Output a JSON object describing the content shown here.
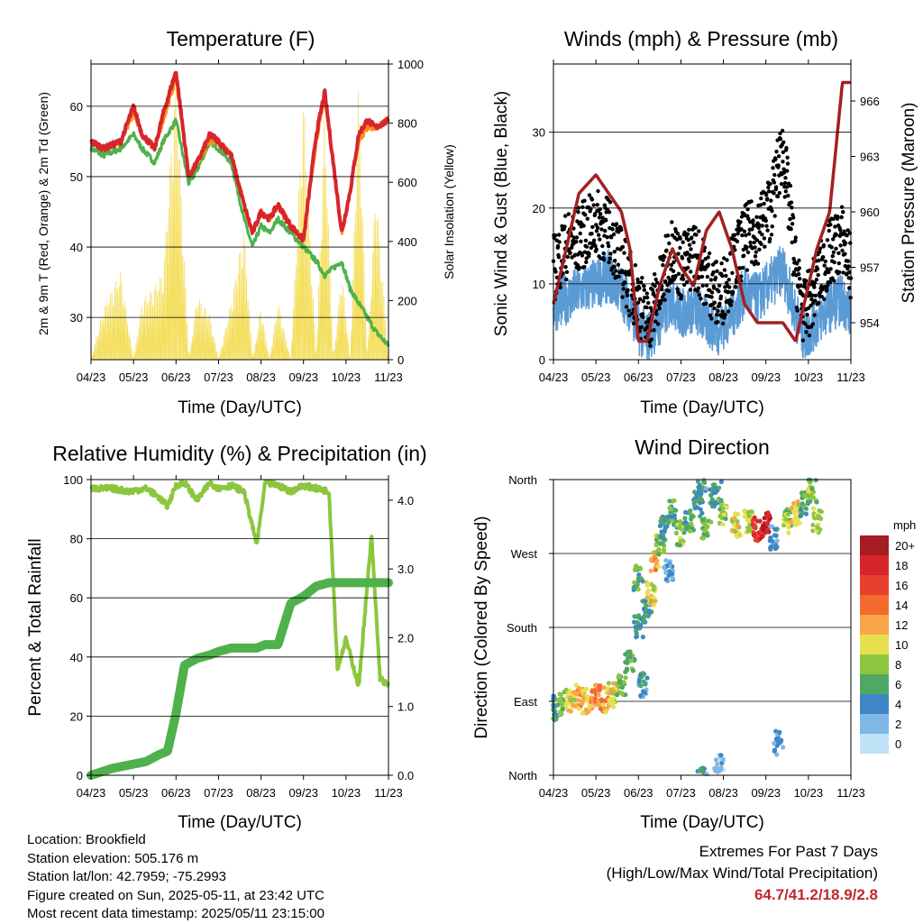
{
  "panels": {
    "temperature": {
      "title": "Temperature (F)",
      "xlabel": "Time (Day/UTC)",
      "ylabel_left": "2m & 9m T (Red, Orange) & 2m Td (Green)",
      "ylabel_right": "Solar Insolation (Yellow)"
    },
    "winds": {
      "title": "Winds (mph) & Pressure (mb)",
      "xlabel": "Time (Day/UTC)",
      "ylabel_left": "Sonic Wind & Gust (Blue, Black)",
      "ylabel_right": "Station Pressure (Maroon)"
    },
    "humidity": {
      "title": "Relative Humidity (%) & Precipitation (in)",
      "xlabel": "Time (Day/UTC)",
      "ylabel_left": "Percent & Total Rainfall"
    },
    "direction": {
      "title": "Wind Direction",
      "xlabel": "Time (Day/UTC)",
      "ylabel_left": "Direction (Colored By Speed)",
      "legend_title": "mph"
    }
  },
  "info": {
    "location": "Location: Brookfield",
    "elevation": "Station elevation: 505.176 m",
    "latlon": "Station lat/lon: 42.7959; -75.2993",
    "created": "Figure created on Sun, 2025-05-11, at 23:42 UTC",
    "recent": "Most recent data timestamp: 2025/05/11 23:15:00"
  },
  "extremes": {
    "title": "Extremes For Past 7 Days",
    "subtitle": "(High/Low/Max Wind/Total Precipitation)",
    "values": "64.7/41.2/18.9/2.8",
    "value_color": "#c0282d"
  },
  "chart_data": [
    {
      "type": "line",
      "title": "Temperature (F)",
      "xlabel": "Time (Day/UTC)",
      "ylabel": "2m & 9m T (Red, Orange) & 2m Td (Green)",
      "y2label": "Solar Insolation (Yellow)",
      "x_ticks": [
        "04/23",
        "05/23",
        "06/23",
        "07/23",
        "08/23",
        "09/23",
        "10/23",
        "11/23"
      ],
      "x": [
        0,
        0.3,
        0.7,
        1.0,
        1.2,
        1.5,
        1.7,
        2.0,
        2.3,
        2.5,
        2.8,
        3.0,
        3.3,
        3.6,
        3.8,
        4.0,
        4.2,
        4.4,
        4.7,
        5.0,
        5.3,
        5.5,
        5.7,
        5.9,
        6.1,
        6.3,
        6.5,
        6.7,
        7.0
      ],
      "xlim": [
        0,
        7
      ],
      "ylim": [
        24,
        66
      ],
      "yticks": [
        30,
        40,
        50,
        60
      ],
      "y2lim": [
        0,
        1000
      ],
      "y2ticks": [
        0,
        200,
        400,
        600,
        800,
        1000
      ],
      "grid": true,
      "series": [
        {
          "name": "2m T",
          "color": "#d7262b",
          "axis": "left",
          "values": [
            55,
            54,
            55,
            60,
            56,
            54,
            59,
            65,
            50,
            52,
            56,
            55,
            53,
            46,
            42,
            45,
            44,
            46,
            43,
            41,
            56,
            62,
            52,
            42,
            48,
            56,
            58,
            57,
            58
          ]
        },
        {
          "name": "9m T",
          "color": "#ff8c1a",
          "axis": "left",
          "values": [
            55,
            54,
            55,
            59,
            56,
            54,
            58,
            64,
            50,
            52,
            55,
            55,
            53,
            46,
            42,
            45,
            44,
            46,
            43,
            41,
            55,
            61,
            52,
            42,
            48,
            55,
            57,
            57,
            58
          ]
        },
        {
          "name": "2m Td",
          "color": "#4fb14b",
          "axis": "left",
          "values": [
            54,
            53,
            54,
            56,
            54,
            52,
            55,
            58,
            49,
            51,
            55,
            54,
            52,
            44,
            40,
            43,
            42,
            44,
            42,
            40,
            38,
            36,
            37,
            38,
            34,
            32,
            30,
            28,
            26
          ]
        },
        {
          "name": "Solar Insolation",
          "color": "#f4de5c",
          "axis": "right",
          "values": [
            0,
            180,
            300,
            0,
            200,
            250,
            300,
            980,
            0,
            220,
            150,
            0,
            200,
            450,
            0,
            180,
            0,
            200,
            0,
            900,
            0,
            850,
            0,
            300,
            0,
            950,
            0,
            600,
            0
          ]
        }
      ]
    },
    {
      "type": "scatter",
      "title": "Winds (mph) & Pressure (mb)",
      "xlabel": "Time (Day/UTC)",
      "ylabel": "Sonic Wind & Gust (Blue, Black)",
      "y2label": "Station Pressure (Maroon)",
      "x_ticks": [
        "04/23",
        "05/23",
        "06/23",
        "07/23",
        "08/23",
        "09/23",
        "10/23",
        "11/23"
      ],
      "x": [
        0,
        0.3,
        0.6,
        1.0,
        1.3,
        1.6,
        1.8,
        2.0,
        2.2,
        2.5,
        2.8,
        3.0,
        3.3,
        3.6,
        3.9,
        4.2,
        4.5,
        4.8,
        5.1,
        5.4,
        5.7,
        5.9,
        6.2,
        6.5,
        6.8,
        7.0
      ],
      "xlim": [
        0,
        7
      ],
      "ylim": [
        0,
        39
      ],
      "yticks": [
        0,
        10,
        20,
        30
      ],
      "y2lim": [
        952,
        968
      ],
      "y2ticks": [
        954,
        957,
        960,
        963,
        966
      ],
      "grid": true,
      "series": [
        {
          "name": "Sonic Wind",
          "color": "#5b9bd5",
          "axis": "left",
          "values": [
            7,
            8,
            9,
            10,
            11,
            9,
            7,
            4,
            3,
            5,
            8,
            6,
            7,
            5,
            4,
            6,
            9,
            8,
            10,
            12,
            6,
            3,
            5,
            7,
            8,
            6
          ]
        },
        {
          "name": "Gust",
          "color": "#000000",
          "axis": "left",
          "values": [
            12,
            15,
            16,
            18,
            17,
            13,
            10,
            8,
            5,
            9,
            15,
            12,
            14,
            11,
            8,
            12,
            16,
            17,
            20,
            28,
            12,
            6,
            10,
            14,
            16,
            12
          ]
        },
        {
          "name": "Station Pressure",
          "color": "#a32023",
          "axis": "right",
          "values": [
            955,
            958,
            961,
            962,
            961,
            960,
            958,
            953,
            953,
            956,
            958,
            957,
            956,
            959,
            960,
            958,
            955,
            954,
            954,
            954,
            953,
            955,
            958,
            960,
            967,
            967
          ]
        }
      ]
    },
    {
      "type": "line",
      "title": "Relative Humidity (%) & Precipitation (in)",
      "xlabel": "Time (Day/UTC)",
      "ylabel": "Percent & Total Rainfall",
      "x_ticks": [
        "04/23",
        "05/23",
        "06/23",
        "07/23",
        "08/23",
        "09/23",
        "10/23",
        "11/23"
      ],
      "x": [
        0,
        0.5,
        0.9,
        1.3,
        1.6,
        1.8,
        2.0,
        2.2,
        2.5,
        2.8,
        3.0,
        3.3,
        3.6,
        3.9,
        4.1,
        4.4,
        4.7,
        5.0,
        5.3,
        5.6,
        5.8,
        6.0,
        6.3,
        6.6,
        6.8,
        7.0
      ],
      "xlim": [
        0,
        7
      ],
      "ylim": [
        0,
        100
      ],
      "yticks": [
        0,
        20,
        40,
        60,
        80,
        100
      ],
      "y2lim": [
        0,
        4.3
      ],
      "y2ticks": [
        0.0,
        1.0,
        2.0,
        3.0,
        4.0
      ],
      "grid": true,
      "series": [
        {
          "name": "Relative Humidity",
          "color": "#8cc63f",
          "axis": "left",
          "values": [
            97,
            97,
            96,
            97,
            94,
            91,
            98,
            99,
            93,
            99,
            97,
            98,
            96,
            78,
            99,
            98,
            96,
            98,
            97,
            96,
            36,
            46,
            30,
            81,
            33,
            30
          ]
        },
        {
          "name": "Total Rainfall",
          "color": "#4fb14b",
          "axis": "right",
          "values": [
            0.0,
            0.1,
            0.15,
            0.2,
            0.3,
            0.35,
            0.9,
            1.6,
            1.7,
            1.75,
            1.8,
            1.85,
            1.85,
            1.85,
            1.9,
            1.9,
            2.5,
            2.6,
            2.75,
            2.8,
            2.8,
            2.8,
            2.8,
            2.8,
            2.8,
            2.8
          ]
        }
      ]
    },
    {
      "type": "scatter",
      "title": "Wind Direction",
      "xlabel": "Time (Day/UTC)",
      "ylabel": "Direction (Colored By Speed)",
      "x_ticks": [
        "04/23",
        "05/23",
        "06/23",
        "07/23",
        "08/23",
        "09/23",
        "10/23",
        "11/23"
      ],
      "y_ticks": [
        "North",
        "East",
        "South",
        "West",
        "North"
      ],
      "xlim": [
        0,
        7
      ],
      "ylim": [
        0,
        360
      ],
      "legend_title": "mph",
      "legend": [
        {
          "label": "20+",
          "color": "#a51c22"
        },
        {
          "label": "18",
          "color": "#d7262b"
        },
        {
          "label": "16",
          "color": "#e8402c"
        },
        {
          "label": "14",
          "color": "#f26a2c"
        },
        {
          "label": "12",
          "color": "#f9a64a"
        },
        {
          "label": "10",
          "color": "#e6e04f"
        },
        {
          "label": "8",
          "color": "#8cc63f"
        },
        {
          "label": "6",
          "color": "#4fa865"
        },
        {
          "label": "4",
          "color": "#3e87c4"
        },
        {
          "label": "2",
          "color": "#7fb8e6"
        },
        {
          "label": "0",
          "color": "#bfe3f7"
        }
      ],
      "legend_placement": "right",
      "points": [
        {
          "x": 0.0,
          "dir": 82,
          "speed": 5
        },
        {
          "x": 0.2,
          "dir": 88,
          "speed": 8
        },
        {
          "x": 0.4,
          "dir": 92,
          "speed": 10
        },
        {
          "x": 0.6,
          "dir": 95,
          "speed": 12
        },
        {
          "x": 0.8,
          "dir": 90,
          "speed": 11
        },
        {
          "x": 1.0,
          "dir": 96,
          "speed": 13
        },
        {
          "x": 1.2,
          "dir": 92,
          "speed": 12
        },
        {
          "x": 1.4,
          "dir": 98,
          "speed": 10
        },
        {
          "x": 1.6,
          "dir": 110,
          "speed": 7
        },
        {
          "x": 1.8,
          "dir": 140,
          "speed": 6
        },
        {
          "x": 2.0,
          "dir": 180,
          "speed": 5
        },
        {
          "x": 2.0,
          "dir": 240,
          "speed": 6
        },
        {
          "x": 2.1,
          "dir": 110,
          "speed": 4
        },
        {
          "x": 2.2,
          "dir": 200,
          "speed": 5
        },
        {
          "x": 2.3,
          "dir": 220,
          "speed": 10
        },
        {
          "x": 2.4,
          "dir": 260,
          "speed": 12
        },
        {
          "x": 2.5,
          "dir": 280,
          "speed": 8
        },
        {
          "x": 2.6,
          "dir": 300,
          "speed": 5
        },
        {
          "x": 2.7,
          "dir": 250,
          "speed": 3
        },
        {
          "x": 2.8,
          "dir": 320,
          "speed": 6
        },
        {
          "x": 3.0,
          "dir": 295,
          "speed": 8
        },
        {
          "x": 3.2,
          "dir": 310,
          "speed": 6
        },
        {
          "x": 3.4,
          "dir": 330,
          "speed": 5
        },
        {
          "x": 3.5,
          "dir": 355,
          "speed": 4
        },
        {
          "x": 3.6,
          "dir": 300,
          "speed": 7
        },
        {
          "x": 3.8,
          "dir": 340,
          "speed": 5
        },
        {
          "x": 3.9,
          "dir": 10,
          "speed": 2
        },
        {
          "x": 4.0,
          "dir": 320,
          "speed": 8
        },
        {
          "x": 4.3,
          "dir": 305,
          "speed": 10
        },
        {
          "x": 4.6,
          "dir": 310,
          "speed": 9
        },
        {
          "x": 4.8,
          "dir": 300,
          "speed": 17
        },
        {
          "x": 5.0,
          "dir": 305,
          "speed": 19
        },
        {
          "x": 5.2,
          "dir": 290,
          "speed": 4
        },
        {
          "x": 5.3,
          "dir": 40,
          "speed": 3
        },
        {
          "x": 5.5,
          "dir": 310,
          "speed": 8
        },
        {
          "x": 5.7,
          "dir": 320,
          "speed": 10
        },
        {
          "x": 5.9,
          "dir": 330,
          "speed": 6
        },
        {
          "x": 6.1,
          "dir": 345,
          "speed": 8
        },
        {
          "x": 6.2,
          "dir": 310,
          "speed": 9
        }
      ]
    }
  ]
}
